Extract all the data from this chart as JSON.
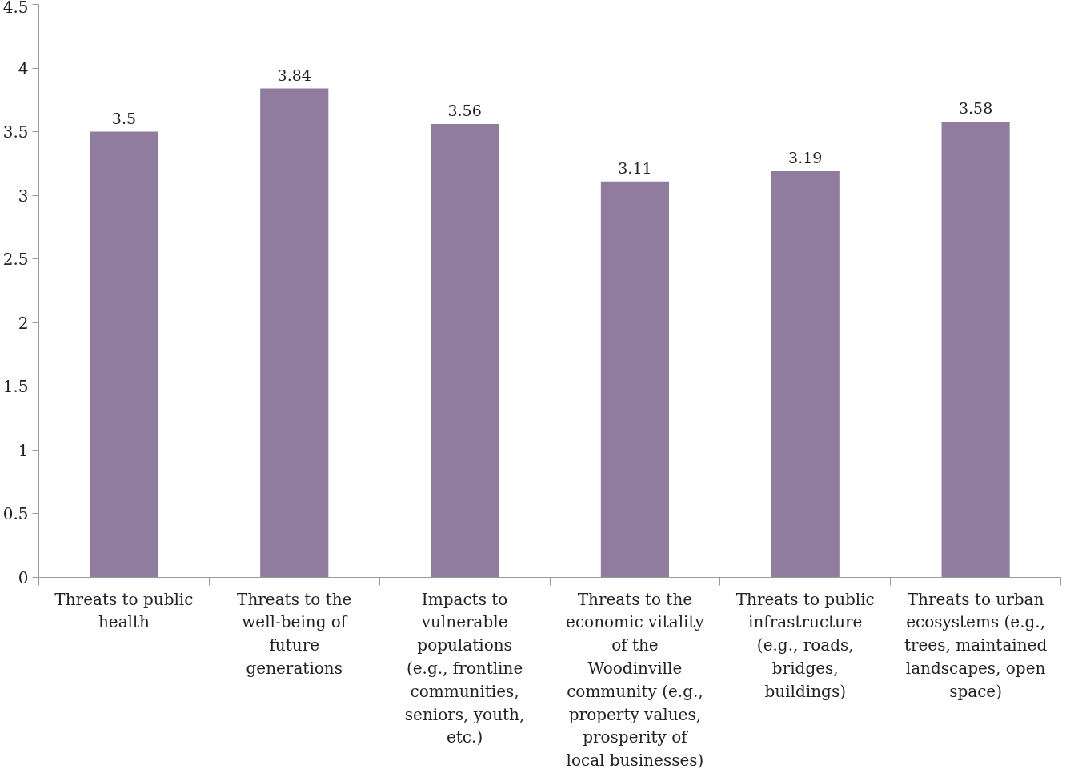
{
  "chart_data": {
    "type": "bar",
    "categories": [
      "Threats to public health",
      "Threats to the well-being of future generations",
      "Impacts to vulnerable populations (e.g., frontline communities, seniors, youth, etc.)",
      "Threats to the economic vitality of the Woodinville community (e.g., property values, prosperity of local businesses)",
      "Threats to public infrastructure (e.g., roads, bridges, buildings)",
      "Threats to urban ecosystems (e.g., trees, maintained landscapes, open space)"
    ],
    "values": [
      3.5,
      3.84,
      3.56,
      3.11,
      3.19,
      3.58
    ],
    "color": "#8f7c9f",
    "ylim": [
      0,
      4.5
    ],
    "yticks": [
      0,
      0.5,
      1,
      1.5,
      2,
      2.5,
      3,
      3.5,
      4,
      4.5
    ],
    "grid": false,
    "data_labels": true
  }
}
